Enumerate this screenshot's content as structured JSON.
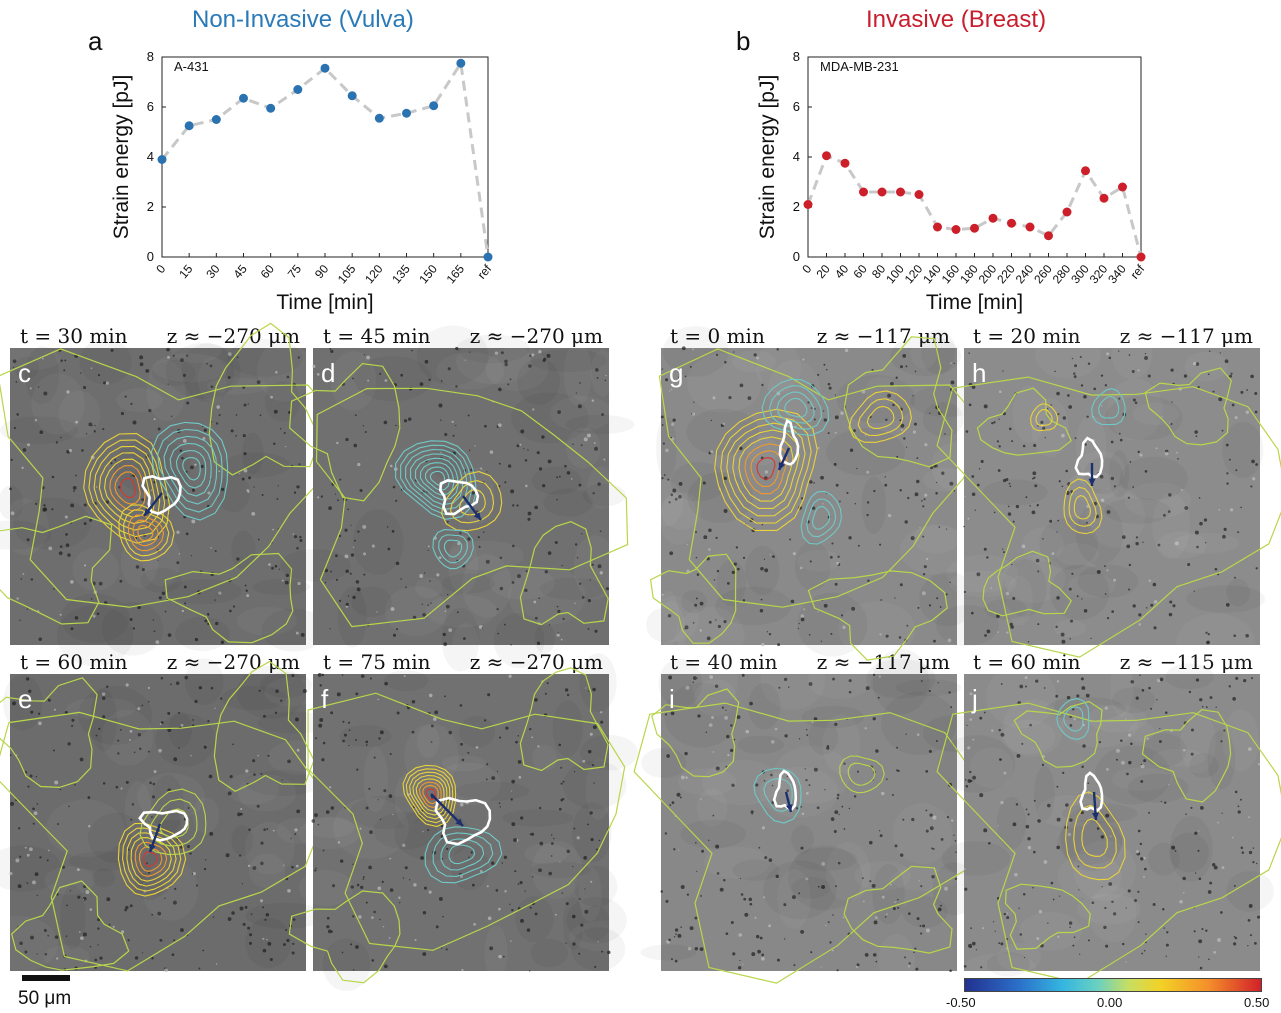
{
  "charts": {
    "a": {
      "letter": "a",
      "title": "Non-Invasive (Vulva)",
      "title_color": "#2a7ab8",
      "cell_line": "A-431",
      "ylabel": "Strain energy [pJ]",
      "xlabel": "Time [min]",
      "point_color": "#2a72b0",
      "ylim": [
        0,
        8
      ],
      "yticks": [
        "0",
        "2",
        "4",
        "6",
        "8"
      ],
      "categories": [
        "0",
        "15",
        "30",
        "45",
        "60",
        "75",
        "90",
        "105",
        "120",
        "135",
        "150",
        "165",
        "ref"
      ],
      "values": [
        3.9,
        5.25,
        5.5,
        6.35,
        5.95,
        6.7,
        7.55,
        6.45,
        5.55,
        5.75,
        6.05,
        7.75,
        0
      ]
    },
    "b": {
      "letter": "b",
      "title": "Invasive (Breast)",
      "title_color": "#c81e2e",
      "cell_line": "MDA-MB-231",
      "ylabel": "Strain energy [pJ]",
      "xlabel": "Time [min]",
      "point_color": "#cc1f2a",
      "ylim": [
        0,
        8
      ],
      "yticks": [
        "0",
        "2",
        "4",
        "6",
        "8"
      ],
      "categories": [
        "0",
        "20",
        "40",
        "60",
        "80",
        "100",
        "120",
        "140",
        "160",
        "180",
        "200",
        "220",
        "240",
        "260",
        "280",
        "300",
        "320",
        "340",
        "ref"
      ],
      "values": [
        2.1,
        4.05,
        3.75,
        2.6,
        2.6,
        2.6,
        2.5,
        1.2,
        1.1,
        1.15,
        1.55,
        1.35,
        1.2,
        0.85,
        1.8,
        3.45,
        2.35,
        2.8,
        0
      ]
    }
  },
  "panels": [
    {
      "letter": "c",
      "time": "t = 30 min",
      "depth": "z ≈ −270 μm"
    },
    {
      "letter": "d",
      "time": "t = 45 min",
      "depth": "z ≈ −270 μm"
    },
    {
      "letter": "e",
      "time": "t = 60 min",
      "depth": "z ≈ −270 μm"
    },
    {
      "letter": "f",
      "time": "t = 75 min",
      "depth": "z ≈ −270 μm"
    },
    {
      "letter": "g",
      "time": "t = 0 min",
      "depth": "z ≈ −117 μm"
    },
    {
      "letter": "h",
      "time": "t = 20 min",
      "depth": "z ≈ −117 μm"
    },
    {
      "letter": "i",
      "time": "t = 40 min",
      "depth": "z ≈ −117 μm"
    },
    {
      "letter": "j",
      "time": "t = 60 min",
      "depth": "z ≈ −115 μm"
    }
  ],
  "scalebar": {
    "label": "50 μm"
  },
  "colorbar": {
    "min_label": "-0.50",
    "mid_label": "0.00",
    "max_label": "0.50"
  }
}
